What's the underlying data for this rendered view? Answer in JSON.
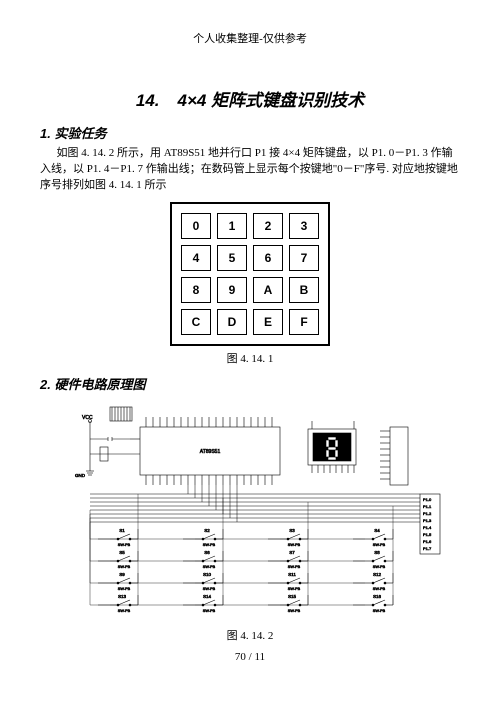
{
  "header": "个人收集整理-仅供参考",
  "chapter": {
    "num": "14.",
    "title": "4×4 矩阵式键盘识别技术"
  },
  "section1": {
    "num": "1.",
    "title": "实验任务",
    "para": "如图 4. 14. 2 所示，用 AT89S51 地并行口 P1 接 4×4 矩阵键盘，以 P1. 0－P1. 3 作输入线，以 P1. 4－P1. 7 作输出线；在数码管上显示每个按键地\"0－F\"序号. 对应地按键地序号排列如图 4. 14. 1 所示"
  },
  "keypad": {
    "rows": [
      [
        "0",
        "1",
        "2",
        "3"
      ],
      [
        "4",
        "5",
        "6",
        "7"
      ],
      [
        "8",
        "9",
        "A",
        "B"
      ],
      [
        "C",
        "D",
        "E",
        "F"
      ]
    ]
  },
  "fig1_caption": "图 4. 14. 1",
  "section2": {
    "num": "2.",
    "title": "硬件电路原理图"
  },
  "circuit": {
    "vcc": "VCC",
    "gnd": "GND",
    "chip": "AT89S51",
    "switches": [
      "S1",
      "S2",
      "S3",
      "S4",
      "S5",
      "S6",
      "S7",
      "S8",
      "S9",
      "S10",
      "S11",
      "S12",
      "S13",
      "S14",
      "S15",
      "S16"
    ],
    "sw_label": "SW-PB",
    "port_labels": [
      "P1.0",
      "P1.1",
      "P1.2",
      "P1.3",
      "P1.4",
      "P1.5",
      "P1.6",
      "P1.7"
    ],
    "display_pins": [
      "DCBA",
      "D",
      "G",
      "F",
      "E",
      "D",
      "C",
      "B",
      "A"
    ]
  },
  "fig2_caption": "图 4. 14. 2",
  "page_num": "70 / 11"
}
